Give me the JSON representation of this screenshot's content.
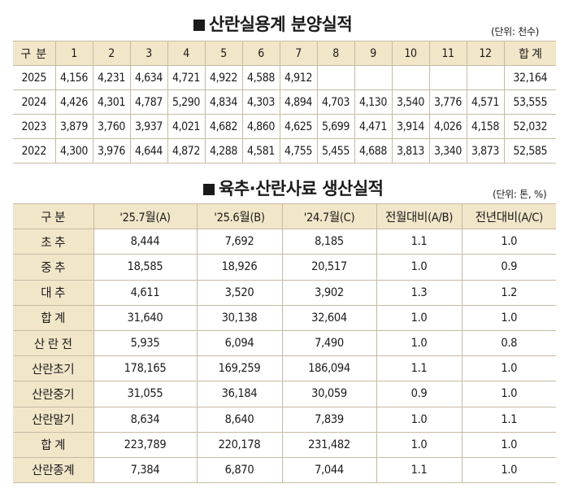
{
  "sales": {
    "title": "산란실용계 분양실적",
    "unit": "(단위: 천수)",
    "headers": [
      "구 분",
      "1",
      "2",
      "3",
      "4",
      "5",
      "6",
      "7",
      "8",
      "9",
      "10",
      "11",
      "12",
      "합 계"
    ],
    "rows": [
      [
        "2025",
        "4,156",
        "4,231",
        "4,634",
        "4,721",
        "4,922",
        "4,588",
        "4,912",
        "",
        "",
        "",
        "",
        "",
        "32,164"
      ],
      [
        "2024",
        "4,426",
        "4,301",
        "4,787",
        "5,290",
        "4,834",
        "4,303",
        "4,894",
        "4,703",
        "4,130",
        "3,540",
        "3,776",
        "4,571",
        "53,555"
      ],
      [
        "2023",
        "3,879",
        "3,760",
        "3,937",
        "4,021",
        "4,682",
        "4,860",
        "4,625",
        "5,699",
        "4,471",
        "3,914",
        "4,026",
        "4,158",
        "52,032"
      ],
      [
        "2022",
        "4,300",
        "3,976",
        "4,644",
        "4,872",
        "4,288",
        "4,581",
        "4,755",
        "5,455",
        "4,688",
        "3,813",
        "3,340",
        "3,873",
        "52,585"
      ]
    ]
  },
  "production": {
    "title": "육추·산란사료 생산실적",
    "unit": "(단위: 톤, %)",
    "headers": [
      "구 분",
      "'25.7월(A)",
      "'25.6월(B)",
      "'24.7월(C)",
      "전월대비(A/B)",
      "전년대비(A/C)"
    ],
    "rows": [
      [
        "초 추",
        "8,444",
        "7,692",
        "8,185",
        "1.1",
        "1.0"
      ],
      [
        "중 추",
        "18,585",
        "18,926",
        "20,517",
        "1.0",
        "0.9"
      ],
      [
        "대 추",
        "4,611",
        "3,520",
        "3,902",
        "1.3",
        "1.2"
      ],
      [
        "합 계",
        "31,640",
        "30,138",
        "32,604",
        "1.0",
        "1.0"
      ],
      [
        "산 란 전",
        "5,935",
        "6,094",
        "7,490",
        "1.0",
        "0.8"
      ],
      [
        "산란초기",
        "178,165",
        "169,259",
        "186,094",
        "1.1",
        "1.0"
      ],
      [
        "산란중기",
        "31,055",
        "36,184",
        "30,059",
        "0.9",
        "1.0"
      ],
      [
        "산란말기",
        "8,634",
        "8,640",
        "7,839",
        "1.0",
        "1.1"
      ],
      [
        "합 계",
        "223,789",
        "220,178",
        "231,482",
        "1.0",
        "1.0"
      ],
      [
        "산란종계",
        "7,384",
        "6,870",
        "7,044",
        "1.1",
        "1.0"
      ]
    ]
  }
}
